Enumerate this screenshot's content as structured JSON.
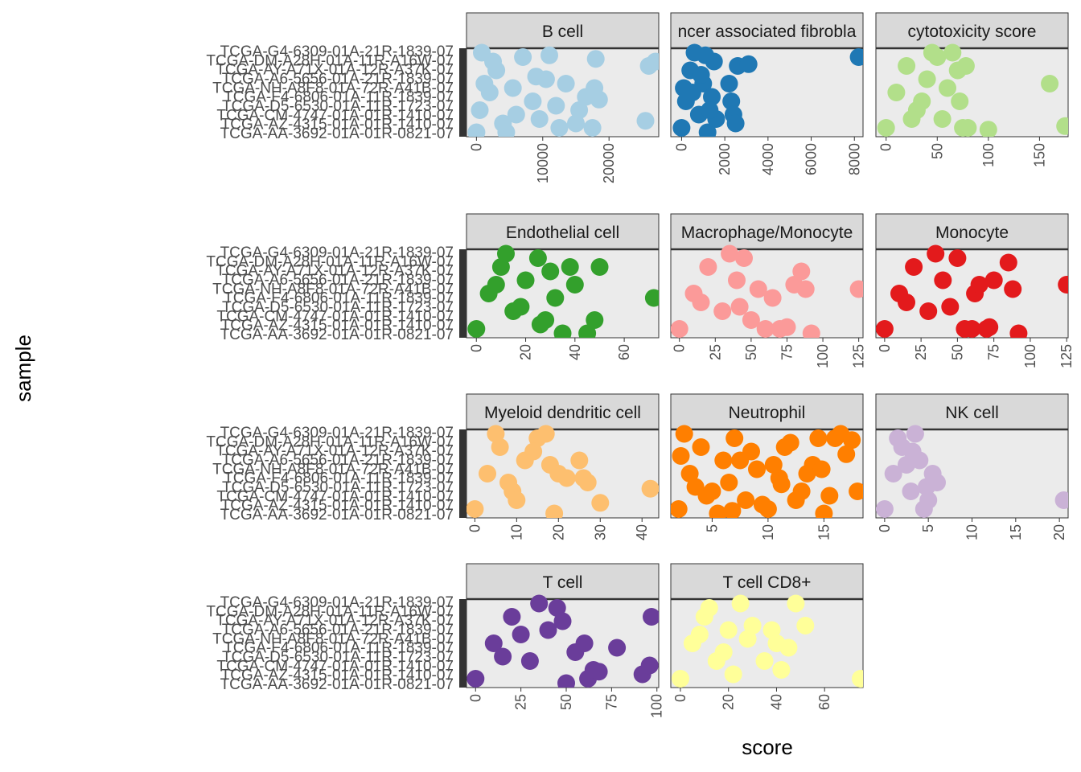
{
  "chart_data": {
    "type": "scatter",
    "xlabel": "score",
    "ylabel": "sample",
    "facet_scales": "free",
    "grid": false,
    "legend": "none",
    "panel_background": "#ebebeb",
    "strip_background": "#d9d9d9",
    "panels": [
      {
        "title": "B cell",
        "color": "#a6cee3",
        "xlim": [
          -1500,
          27500
        ],
        "xticks": [
          0,
          10000,
          20000
        ],
        "x": [
          0,
          500,
          1200,
          2500,
          4000,
          5500,
          7000,
          8500,
          9500,
          11000,
          12000,
          13500,
          15000,
          16500,
          17500,
          18000,
          18500,
          26000,
          25500,
          27000,
          3000,
          6000,
          9000,
          12500,
          15500,
          17800,
          800,
          2000,
          4500,
          10500
        ],
        "y": [
          0.05,
          0.3,
          0.6,
          0.85,
          0.15,
          0.55,
          0.9,
          0.4,
          0.2,
          0.92,
          0.35,
          0.6,
          0.15,
          0.45,
          0.1,
          0.88,
          0.42,
          0.8,
          0.18,
          0.85,
          0.75,
          0.25,
          0.68,
          0.1,
          0.3,
          0.55,
          0.95,
          0.5,
          0.05,
          0.65
        ]
      },
      {
        "title": "cancer associated fibroblast",
        "color": "#1f78b4",
        "xlim": [
          -500,
          8400
        ],
        "xticks": [
          0,
          2000,
          4000,
          6000,
          8000
        ],
        "x": [
          0,
          200,
          400,
          600,
          800,
          1000,
          1200,
          1400,
          1500,
          1600,
          2200,
          2300,
          2400,
          2500,
          2600,
          3100,
          8200,
          100,
          900,
          1300,
          500,
          1100
        ],
        "y": [
          0.1,
          0.4,
          0.75,
          0.95,
          0.25,
          0.6,
          0.05,
          0.45,
          0.85,
          0.2,
          0.6,
          0.4,
          0.25,
          0.15,
          0.8,
          0.82,
          0.9,
          0.55,
          0.7,
          0.3,
          0.5,
          0.92
        ],
        "strip_label": "ncer associated fibrobla"
      },
      {
        "title": "cytotoxicity score",
        "color": "#b2df8a",
        "xlim": [
          -10,
          178
        ],
        "xticks": [
          0,
          50,
          100,
          150
        ],
        "x": [
          0,
          10,
          20,
          30,
          40,
          50,
          55,
          60,
          65,
          70,
          72,
          75,
          78,
          80,
          100,
          160,
          175,
          35,
          45,
          25
        ],
        "y": [
          0.1,
          0.5,
          0.8,
          0.3,
          0.65,
          0.9,
          0.2,
          0.55,
          0.95,
          0.75,
          0.4,
          0.1,
          0.8,
          0.1,
          0.08,
          0.6,
          0.12,
          0.4,
          0.95,
          0.2
        ]
      },
      {
        "title": "Endothelial cell",
        "color": "#33a02c",
        "xlim": [
          -4,
          74
        ],
        "xticks": [
          0,
          20,
          40,
          60
        ],
        "x": [
          0,
          5,
          10,
          15,
          20,
          25,
          28,
          30,
          32,
          35,
          38,
          40,
          45,
          48,
          50,
          72,
          12,
          18,
          26,
          8
        ],
        "y": [
          0.1,
          0.5,
          0.8,
          0.3,
          0.65,
          0.9,
          0.2,
          0.75,
          0.45,
          0.05,
          0.8,
          0.6,
          0.05,
          0.2,
          0.8,
          0.45,
          0.95,
          0.35,
          0.15,
          0.6
        ]
      },
      {
        "title": "Macrophage/Monocyte",
        "color": "#fb9a99",
        "xlim": [
          -6,
          128
        ],
        "xticks": [
          0,
          25,
          50,
          75,
          100,
          125
        ],
        "x": [
          0,
          10,
          20,
          30,
          40,
          45,
          50,
          55,
          60,
          65,
          70,
          75,
          80,
          85,
          88,
          92,
          125,
          35,
          15,
          42
        ],
        "y": [
          0.1,
          0.5,
          0.8,
          0.3,
          0.65,
          0.9,
          0.2,
          0.55,
          0.1,
          0.45,
          0.1,
          0.12,
          0.6,
          0.75,
          0.55,
          0.05,
          0.55,
          0.95,
          0.4,
          0.35
        ]
      },
      {
        "title": "Monocyte",
        "color": "#e31a1c",
        "xlim": [
          -6,
          126
        ],
        "xticks": [
          0,
          25,
          50,
          75,
          100,
          125
        ],
        "x": [
          0,
          10,
          20,
          30,
          40,
          50,
          55,
          60,
          62,
          65,
          70,
          72,
          75,
          85,
          88,
          92,
          125,
          35,
          45,
          15
        ],
        "y": [
          0.1,
          0.5,
          0.8,
          0.3,
          0.65,
          0.9,
          0.1,
          0.1,
          0.5,
          0.6,
          0.1,
          0.12,
          0.65,
          0.85,
          0.55,
          0.05,
          0.6,
          0.95,
          0.35,
          0.4
        ]
      },
      {
        "title": "Myeloid dendritic cell",
        "color": "#fdbf6f",
        "xlim": [
          -2,
          44
        ],
        "xticks": [
          0,
          10,
          20,
          30,
          40
        ],
        "x": [
          0,
          3,
          6,
          9,
          12,
          15,
          17,
          18,
          19,
          20,
          22,
          25,
          26,
          27,
          30,
          42,
          10,
          14,
          5,
          8
        ],
        "y": [
          0.1,
          0.5,
          0.8,
          0.3,
          0.65,
          0.9,
          0.95,
          0.6,
          0.05,
          0.5,
          0.45,
          0.65,
          0.45,
          0.4,
          0.17,
          0.33,
          0.2,
          0.75,
          0.95,
          0.4
        ]
      },
      {
        "title": "Neutrophil",
        "color": "#ff7f00",
        "xlim": [
          1.3,
          18.5
        ],
        "xticks": [
          5,
          10,
          15
        ],
        "x": [
          2,
          3,
          4,
          5,
          6,
          7,
          8,
          9,
          10,
          11,
          12,
          13,
          14,
          15,
          16,
          17,
          18,
          2.5,
          4.5,
          6.5,
          8.5,
          10.5,
          12.5,
          14.5,
          16.5,
          3.5,
          5.5,
          7.5,
          9.5,
          11.5,
          13.5,
          15.5,
          17.5,
          2.2,
          6.8,
          11.2,
          14.8
        ],
        "y": [
          0.1,
          0.5,
          0.8,
          0.3,
          0.65,
          0.9,
          0.2,
          0.55,
          0.1,
          0.45,
          0.85,
          0.3,
          0.6,
          0.05,
          0.9,
          0.72,
          0.3,
          0.95,
          0.25,
          0.4,
          0.75,
          0.6,
          0.2,
          0.9,
          0.95,
          0.35,
          0.05,
          0.65,
          0.15,
          0.8,
          0.5,
          0.25,
          0.88,
          0.7,
          0.08,
          0.38,
          0.55
        ]
      },
      {
        "title": "NK cell",
        "color": "#cab2d6",
        "xlim": [
          -1,
          21
        ],
        "xticks": [
          0,
          5,
          10,
          15,
          20
        ],
        "x": [
          0,
          1,
          2,
          3,
          3.5,
          4,
          4.5,
          5,
          5.5,
          6,
          20.5,
          2.5,
          1.5,
          3.2,
          4.8
        ],
        "y": [
          0.1,
          0.5,
          0.8,
          0.3,
          0.95,
          0.65,
          0.1,
          0.2,
          0.5,
          0.4,
          0.2,
          0.6,
          0.9,
          0.75,
          0.35
        ]
      },
      {
        "title": "T cell",
        "color": "#6a3d9a",
        "xlim": [
          -5,
          101
        ],
        "xticks": [
          0,
          25,
          50,
          75,
          100
        ],
        "x": [
          0,
          10,
          20,
          30,
          40,
          45,
          50,
          55,
          60,
          62,
          65,
          68,
          78,
          92,
          96,
          97,
          35,
          25,
          15,
          48
        ],
        "y": [
          0.1,
          0.5,
          0.8,
          0.3,
          0.65,
          0.9,
          0.05,
          0.4,
          0.5,
          0.1,
          0.2,
          0.18,
          0.45,
          0.15,
          0.25,
          0.8,
          0.95,
          0.6,
          0.35,
          0.75
        ]
      },
      {
        "title": "T cell CD8+",
        "color": "#ffff99",
        "xlim": [
          -4,
          76
        ],
        "xticks": [
          0,
          20,
          40,
          60
        ],
        "x": [
          0,
          5,
          10,
          15,
          20,
          25,
          28,
          30,
          35,
          38,
          40,
          42,
          45,
          48,
          52,
          75,
          12,
          18,
          22,
          8
        ],
        "y": [
          0.1,
          0.5,
          0.8,
          0.3,
          0.65,
          0.95,
          0.55,
          0.7,
          0.3,
          0.65,
          0.5,
          0.2,
          0.45,
          0.95,
          0.7,
          0.1,
          0.9,
          0.4,
          0.15,
          0.6
        ]
      }
    ]
  },
  "yaxis_labels": [
    "TCGA-AA-3692-01A-01R-0821-07",
    "TCGA-AZ-4315-01A-01R-1410-07",
    "TCGA-CM-4747-01A-01R-1410-07",
    "TCGA-D5-6530-01A-11R-1723-07",
    "TCGA-F4-6806-01A-11R-1839-07",
    "TCGA-NH-A8F8-01A-72R-A41B-07",
    "TCGA-A6-5656-01A-21R-1839-07",
    "TCGA-AY-A71X-01A-12R-A37K-07",
    "TCGA-DM-A28H-01A-11R-A16W-07",
    "TCGA-G4-6309-01A-21R-1839-07"
  ]
}
